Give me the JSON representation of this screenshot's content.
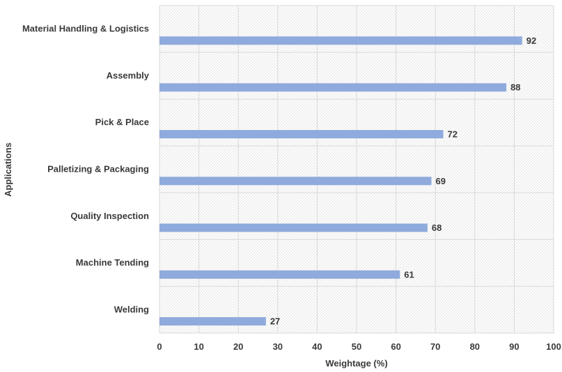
{
  "chart_data": {
    "type": "bar",
    "orientation": "horizontal",
    "categories": [
      "Material Handling & Logistics",
      "Assembly",
      "Pick & Place",
      "Palletizing & Packaging",
      "Quality Inspection",
      "Machine Tending",
      "Welding"
    ],
    "values": [
      92,
      88,
      72,
      69,
      68,
      61,
      27
    ],
    "data_labels": [
      "92",
      "88",
      "72",
      "69",
      "68",
      "61",
      "27"
    ],
    "xlabel": "Weightage (%)",
    "ylabel": "Applications",
    "xlim": [
      0,
      100
    ],
    "x_ticks": [
      "0",
      "10",
      "20",
      "30",
      "40",
      "50",
      "60",
      "70",
      "80",
      "90",
      "100"
    ],
    "grid": true,
    "plot_background": "hatched",
    "bar_color": "#8faadc",
    "grid_color": "#d9d9d9",
    "text_color": "#3a3a3a"
  }
}
